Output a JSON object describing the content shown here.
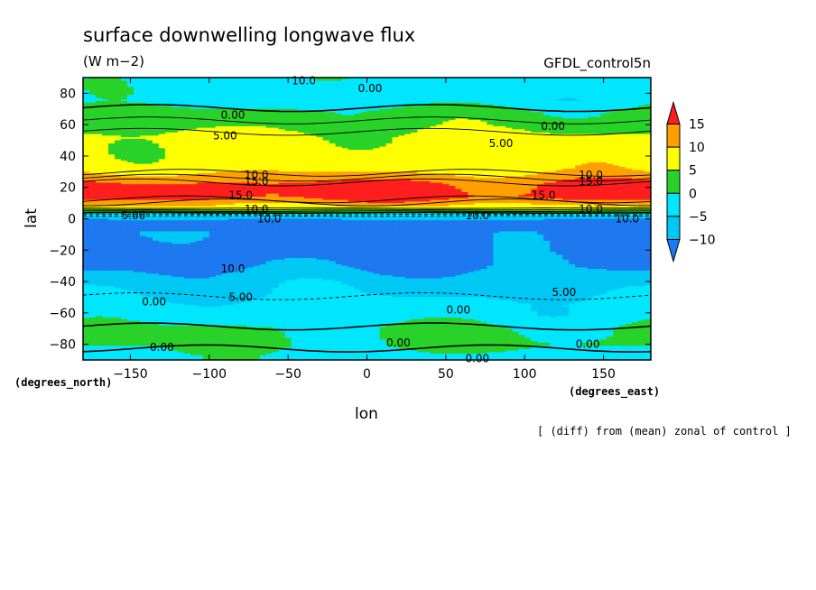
{
  "chart_data": {
    "type": "heatmap",
    "title": "surface downwelling longwave flux",
    "subtitle": "(W m−2)",
    "dataset_label": "GFDL_control5n",
    "xlabel": "lon",
    "ylabel": "lat",
    "x_units": "(degrees_east)",
    "y_units": "(degrees_north)",
    "footnote": "[ (diff) from (mean) zonal of control ]",
    "xlim": [
      -180,
      180
    ],
    "ylim": [
      -90,
      90
    ],
    "x_ticks": [
      -150,
      -100,
      -50,
      0,
      50,
      100,
      150
    ],
    "y_ticks": [
      80,
      60,
      40,
      20,
      0,
      -20,
      -40,
      -60,
      -80
    ],
    "x_tick_labels": [
      "−150",
      "−100",
      "−50",
      "0",
      "50",
      "100",
      "150"
    ],
    "y_tick_labels": [
      "80",
      "60",
      "40",
      "20",
      "0",
      "−20",
      "−40",
      "−60",
      "−80"
    ],
    "colorbar": {
      "levels": [
        -10,
        -5,
        0,
        5,
        10,
        15
      ],
      "level_labels": [
        "15",
        "10",
        "5",
        "0",
        "−5",
        "−10"
      ],
      "colors": [
        "#1e78f0",
        "#00c8f5",
        "#00e6ff",
        "#28d228",
        "#ffff00",
        "#ffa000",
        "#ff1e1e"
      ]
    },
    "lat_profile": [
      {
        "lat": 88,
        "value": -2
      },
      {
        "lat": 75,
        "value": -2.5
      },
      {
        "lat": 68,
        "value": 1.5
      },
      {
        "lat": 60,
        "value": 3
      },
      {
        "lat": 52,
        "value": 6.5
      },
      {
        "lat": 40,
        "value": 7
      },
      {
        "lat": 32,
        "value": 8
      },
      {
        "lat": 28,
        "value": 11
      },
      {
        "lat": 22,
        "value": 16
      },
      {
        "lat": 14,
        "value": 17
      },
      {
        "lat": 10,
        "value": 12
      },
      {
        "lat": 7,
        "value": 8
      },
      {
        "lat": 5,
        "value": 3
      },
      {
        "lat": 3,
        "value": -2
      },
      {
        "lat": 1,
        "value": -7
      },
      {
        "lat": -1,
        "value": -11
      },
      {
        "lat": -20,
        "value": -12
      },
      {
        "lat": -30,
        "value": -11
      },
      {
        "lat": -40,
        "value": -7
      },
      {
        "lat": -48,
        "value": -5.5
      },
      {
        "lat": -55,
        "value": -3
      },
      {
        "lat": -62,
        "value": -2.5
      },
      {
        "lat": -70,
        "value": 0.5
      },
      {
        "lat": -80,
        "value": 1
      },
      {
        "lat": -88,
        "value": -2
      }
    ],
    "contour_labels": [
      {
        "text": "10.0",
        "lon": -40,
        "lat": 88
      },
      {
        "text": "0.00",
        "lon": 2,
        "lat": 83
      },
      {
        "text": "0.00",
        "lon": -85,
        "lat": 66
      },
      {
        "text": "0.00",
        "lon": 118,
        "lat": 59
      },
      {
        "text": "5.00",
        "lon": -90,
        "lat": 53
      },
      {
        "text": "5.00",
        "lon": 85,
        "lat": 48
      },
      {
        "text": "10.0",
        "lon": -70,
        "lat": 28
      },
      {
        "text": "15.0",
        "lon": -70,
        "lat": 24
      },
      {
        "text": "10.0",
        "lon": 142,
        "lat": 28
      },
      {
        "text": "15.0",
        "lon": 142,
        "lat": 24
      },
      {
        "text": "15.0",
        "lon": -80,
        "lat": 15
      },
      {
        "text": "15.0",
        "lon": 112,
        "lat": 15
      },
      {
        "text": "10.0",
        "lon": -70,
        "lat": 6
      },
      {
        "text": "5.00",
        "lon": -148,
        "lat": 2
      },
      {
        "text": "10.0",
        "lon": -62,
        "lat": 0
      },
      {
        "text": "10.0",
        "lon": 70,
        "lat": 2
      },
      {
        "text": "10.0",
        "lon": 142,
        "lat": 6
      },
      {
        "text": "10.0",
        "lon": 165,
        "lat": 0
      },
      {
        "text": "10.0",
        "lon": -85,
        "lat": -32
      },
      {
        "text": "5.00",
        "lon": -80,
        "lat": -50
      },
      {
        "text": "5.00",
        "lon": 125,
        "lat": -47
      },
      {
        "text": "0.00",
        "lon": -135,
        "lat": -53
      },
      {
        "text": "0.00",
        "lon": 58,
        "lat": -58
      },
      {
        "text": "0.00",
        "lon": 20,
        "lat": -79
      },
      {
        "text": "0.00",
        "lon": -130,
        "lat": -82
      },
      {
        "text": "0.00",
        "lon": 140,
        "lat": -80
      },
      {
        "text": "0.00",
        "lon": 70,
        "lat": -89
      }
    ]
  }
}
